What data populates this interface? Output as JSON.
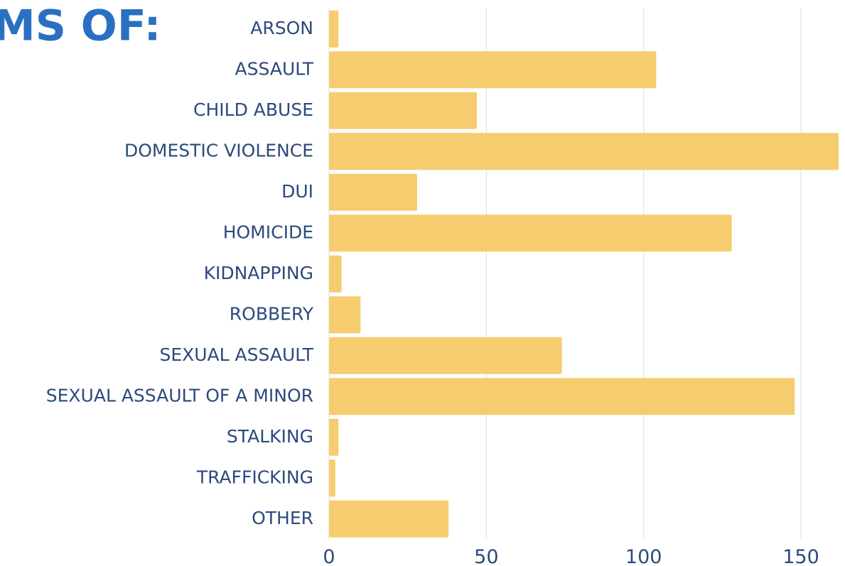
{
  "chart_data": {
    "type": "bar",
    "orientation": "horizontal",
    "title": "MS OF:",
    "categories": [
      "ARSON",
      "ASSAULT",
      "CHILD ABUSE",
      "DOMESTIC VIOLENCE",
      "DUI",
      "HOMICIDE",
      "KIDNAPPING",
      "ROBBERY",
      "SEXUAL ASSAULT",
      "SEXUAL ASSAULT OF A MINOR",
      "STALKING",
      "TRAFFICKING",
      "OTHER"
    ],
    "values": [
      3,
      104,
      47,
      162,
      28,
      128,
      4,
      10,
      74,
      148,
      3,
      2,
      38
    ],
    "color": "#f6cd6e",
    "xlim": [
      0,
      164
    ],
    "xticks": [
      0,
      50,
      100,
      150
    ],
    "grid": true
  }
}
